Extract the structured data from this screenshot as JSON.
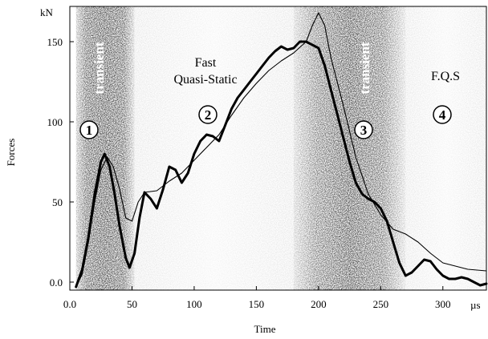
{
  "chart_data": {
    "type": "line",
    "title": "",
    "xlabel": "Time",
    "ylabel": "Forces",
    "x_unit": "µs",
    "y_unit": "kN",
    "xlim": [
      0,
      335
    ],
    "ylim": [
      -5,
      172
    ],
    "x_ticks": [
      "0.0",
      "50",
      "100",
      "150",
      "200",
      "250",
      "300"
    ],
    "y_ticks": [
      "0.0",
      "50",
      "100",
      "150"
    ],
    "x_tick_values": [
      0,
      50,
      100,
      150,
      200,
      250,
      300
    ],
    "y_tick_values": [
      0,
      50,
      100,
      150
    ],
    "grid": false,
    "zones": [
      {
        "x_start": 5,
        "x_end": 52,
        "tone": "dark",
        "label": "transient",
        "marker": "1"
      },
      {
        "x_start": 52,
        "x_end": 180,
        "tone": "light",
        "label": "Fast Quasi-Static",
        "marker": "2"
      },
      {
        "x_start": 180,
        "x_end": 270,
        "tone": "dark",
        "label": "transient",
        "marker": "3"
      },
      {
        "x_start": 270,
        "x_end": 335,
        "tone": "light",
        "label": "F.Q.S",
        "marker": "4"
      }
    ],
    "annotations": {
      "fast": "Fast",
      "quasi_static": "Quasi-Static",
      "fqs": "F.Q.S",
      "transient_1": "transient",
      "transient_3": "transient",
      "m1": "1",
      "m2": "2",
      "m3": "3",
      "m4": "4"
    },
    "series": [
      {
        "style": "thick",
        "x": [
          5,
          10,
          15,
          20,
          25,
          28,
          32,
          36,
          40,
          45,
          48,
          52,
          56,
          60,
          65,
          70,
          75,
          80,
          85,
          90,
          95,
          100,
          105,
          110,
          115,
          120,
          125,
          130,
          135,
          140,
          145,
          150,
          155,
          160,
          165,
          170,
          175,
          180,
          185,
          190,
          195,
          200,
          205,
          210,
          215,
          220,
          225,
          230,
          235,
          240,
          245,
          250,
          255,
          260,
          265,
          270,
          275,
          280,
          285,
          290,
          295,
          300,
          305,
          310,
          315,
          320,
          325,
          330,
          335
        ],
        "y": [
          -3,
          8,
          28,
          55,
          75,
          80,
          72,
          55,
          35,
          15,
          9,
          18,
          40,
          56,
          52,
          46,
          58,
          72,
          70,
          62,
          68,
          80,
          88,
          92,
          91,
          88,
          98,
          108,
          115,
          120,
          125,
          130,
          135,
          140,
          144,
          147,
          145,
          146,
          150,
          150,
          148,
          146,
          135,
          120,
          105,
          90,
          75,
          62,
          55,
          52,
          50,
          46,
          38,
          25,
          12,
          4,
          6,
          10,
          14,
          13,
          8,
          4,
          2,
          2,
          3,
          2,
          0,
          -2,
          -1
        ]
      },
      {
        "style": "thin",
        "x": [
          5,
          10,
          15,
          20,
          25,
          30,
          35,
          40,
          45,
          50,
          55,
          60,
          70,
          80,
          90,
          100,
          110,
          120,
          130,
          140,
          150,
          160,
          170,
          180,
          190,
          195,
          200,
          205,
          210,
          220,
          230,
          240,
          250,
          260,
          270,
          280,
          290,
          300,
          310,
          320,
          335
        ],
        "y": [
          -3,
          5,
          25,
          50,
          70,
          78,
          72,
          58,
          40,
          38,
          50,
          56,
          57,
          63,
          68,
          76,
          84,
          92,
          104,
          115,
          124,
          132,
          138,
          143,
          150,
          160,
          168,
          160,
          140,
          110,
          78,
          55,
          42,
          33,
          30,
          25,
          18,
          12,
          10,
          8,
          7
        ]
      }
    ]
  }
}
